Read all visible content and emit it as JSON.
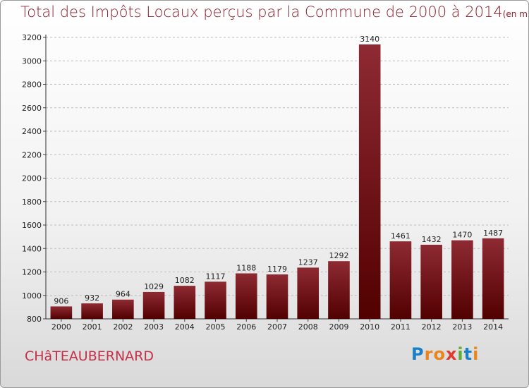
{
  "title": "Total des Impôts Locaux perçus par la Commune de 2000 à 2014",
  "unit": "(en milliers d'€)",
  "commune": "CHâTEAUBERNARD",
  "brand": {
    "letters": [
      "P",
      "r",
      "o",
      "x",
      "i",
      "t",
      "i"
    ],
    "colors": [
      "#1a7fc4",
      "#e8861c",
      "#e8861c",
      "#e03a2f",
      "#5fae34",
      "#1a7fc4",
      "#e8861c"
    ]
  },
  "chart_data": {
    "type": "bar",
    "title": "Total des Impôts Locaux perçus par la Commune de 2000 à 2014",
    "unit": "(en milliers d'€)",
    "categories": [
      "2000",
      "2001",
      "2002",
      "2003",
      "2004",
      "2005",
      "2006",
      "2007",
      "2008",
      "2009",
      "2010",
      "2011",
      "2012",
      "2013",
      "2014"
    ],
    "values": [
      906,
      932,
      964,
      1029,
      1082,
      1117,
      1188,
      1179,
      1237,
      1292,
      3140,
      1461,
      1432,
      1470,
      1487
    ],
    "ylim": [
      800,
      3200
    ],
    "yticks": [
      800,
      1000,
      1200,
      1400,
      1600,
      1800,
      2000,
      2200,
      2400,
      2600,
      2800,
      3000,
      3200
    ],
    "grid": true,
    "bar_color": "#7a1520",
    "xlabel": "",
    "ylabel": ""
  }
}
